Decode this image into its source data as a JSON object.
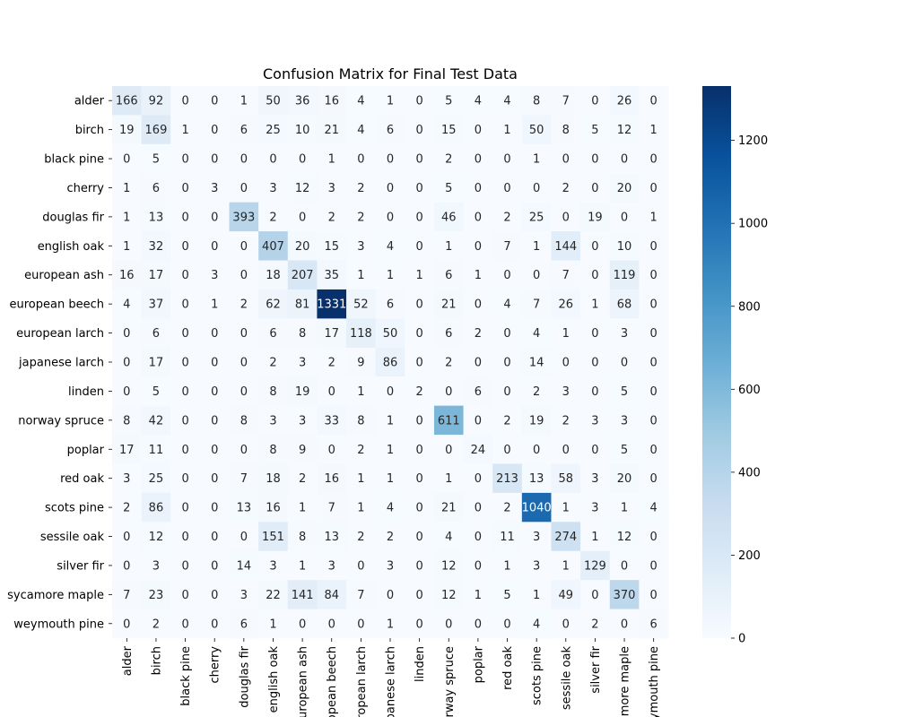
{
  "chart_data": {
    "type": "heatmap",
    "title": "Confusion Matrix for Final Test Data",
    "xlabel": "",
    "ylabel": "",
    "rows": [
      "alder",
      "birch",
      "black pine",
      "cherry",
      "douglas fir",
      "english oak",
      "european ash",
      "european beech",
      "european larch",
      "japanese larch",
      "linden",
      "norway spruce",
      "poplar",
      "red oak",
      "scots pine",
      "sessile oak",
      "silver fir",
      "sycamore maple",
      "weymouth pine"
    ],
    "cols": [
      "alder",
      "birch",
      "black pine",
      "cherry",
      "douglas fir",
      "english oak",
      "european ash",
      "european beech",
      "european larch",
      "japanese larch",
      "linden",
      "norway spruce",
      "poplar",
      "red oak",
      "scots pine",
      "sessile oak",
      "silver fir",
      "sycamore maple",
      "weymouth pine"
    ],
    "values": [
      [
        166,
        92,
        0,
        0,
        1,
        50,
        36,
        16,
        4,
        1,
        0,
        5,
        4,
        4,
        8,
        7,
        0,
        26,
        0
      ],
      [
        19,
        169,
        1,
        0,
        6,
        25,
        10,
        21,
        4,
        6,
        0,
        15,
        0,
        1,
        50,
        8,
        5,
        12,
        1
      ],
      [
        0,
        5,
        0,
        0,
        0,
        0,
        0,
        1,
        0,
        0,
        0,
        2,
        0,
        0,
        1,
        0,
        0,
        0,
        0
      ],
      [
        1,
        6,
        0,
        3,
        0,
        3,
        12,
        3,
        2,
        0,
        0,
        5,
        0,
        0,
        0,
        2,
        0,
        20,
        0
      ],
      [
        1,
        13,
        0,
        0,
        393,
        2,
        0,
        2,
        2,
        0,
        0,
        46,
        0,
        2,
        25,
        0,
        19,
        0,
        1
      ],
      [
        1,
        32,
        0,
        0,
        0,
        407,
        20,
        15,
        3,
        4,
        0,
        1,
        0,
        7,
        1,
        144,
        0,
        10,
        0
      ],
      [
        16,
        17,
        0,
        3,
        0,
        18,
        207,
        35,
        1,
        1,
        1,
        6,
        1,
        0,
        0,
        7,
        0,
        119,
        0
      ],
      [
        4,
        37,
        0,
        1,
        2,
        62,
        81,
        1331,
        52,
        6,
        0,
        21,
        0,
        4,
        7,
        26,
        1,
        68,
        0
      ],
      [
        0,
        6,
        0,
        0,
        0,
        6,
        8,
        17,
        118,
        50,
        0,
        6,
        2,
        0,
        4,
        1,
        0,
        3,
        0
      ],
      [
        0,
        17,
        0,
        0,
        0,
        2,
        3,
        2,
        9,
        86,
        0,
        2,
        0,
        0,
        14,
        0,
        0,
        0,
        0
      ],
      [
        0,
        5,
        0,
        0,
        0,
        8,
        19,
        0,
        1,
        0,
        2,
        0,
        6,
        0,
        2,
        3,
        0,
        5,
        0
      ],
      [
        8,
        42,
        0,
        0,
        8,
        3,
        3,
        33,
        8,
        1,
        0,
        611,
        0,
        2,
        19,
        2,
        3,
        3,
        0
      ],
      [
        17,
        11,
        0,
        0,
        0,
        8,
        9,
        0,
        2,
        1,
        0,
        0,
        24,
        0,
        0,
        0,
        0,
        5,
        0
      ],
      [
        3,
        25,
        0,
        0,
        7,
        18,
        2,
        16,
        1,
        1,
        0,
        1,
        0,
        213,
        13,
        58,
        3,
        20,
        0
      ],
      [
        2,
        86,
        0,
        0,
        13,
        16,
        1,
        7,
        1,
        4,
        0,
        21,
        0,
        2,
        1040,
        1,
        3,
        1,
        4
      ],
      [
        0,
        12,
        0,
        0,
        0,
        151,
        8,
        13,
        2,
        2,
        0,
        4,
        0,
        11,
        3,
        274,
        1,
        12,
        0
      ],
      [
        0,
        3,
        0,
        0,
        14,
        3,
        1,
        3,
        0,
        3,
        0,
        12,
        0,
        1,
        3,
        1,
        129,
        0,
        0
      ],
      [
        7,
        23,
        0,
        0,
        3,
        22,
        141,
        84,
        7,
        0,
        0,
        12,
        1,
        5,
        1,
        49,
        0,
        370,
        0
      ],
      [
        0,
        2,
        0,
        0,
        6,
        1,
        0,
        0,
        0,
        1,
        0,
        0,
        0,
        0,
        4,
        0,
        2,
        0,
        6
      ]
    ],
    "colorbar": {
      "min": 0,
      "max": 1331,
      "ticks": [
        0,
        200,
        400,
        600,
        800,
        1000,
        1200
      ],
      "colormap": "Blues",
      "low_color": "#f7fbff",
      "high_color": "#08306b"
    },
    "grid": false,
    "legend": "colorbar-right"
  }
}
